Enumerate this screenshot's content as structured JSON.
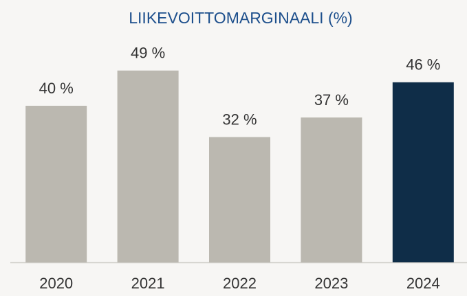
{
  "chart_data": {
    "type": "bar",
    "title": "LIIKEVOITTOMARGINAALI (%)",
    "categories": [
      "2020",
      "2021",
      "2022",
      "2023",
      "2024"
    ],
    "values": [
      40,
      49,
      32,
      37,
      46
    ],
    "value_labels": [
      "40 %",
      "49 %",
      "32 %",
      "37 %",
      "46 %"
    ],
    "colors": [
      "#bbb8b0",
      "#bbb8b0",
      "#bbb8b0",
      "#bbb8b0",
      "#0f2d48"
    ]
  }
}
